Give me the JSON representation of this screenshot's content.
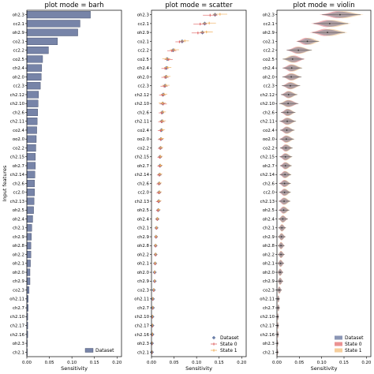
{
  "chart_data": [
    {
      "type": "bar",
      "orientation": "horizontal",
      "title": "plot mode = barh",
      "xlabel": "Sensitivity",
      "ylabel": "Input features",
      "xlim": [
        0,
        0.21
      ],
      "xticks": [
        "0.00",
        "0.05",
        "0.10",
        "0.15",
        "0.20"
      ],
      "categories": [
        "oh2.3",
        "cc2.1",
        "oh2.9",
        "co2.1",
        "cc2.2",
        "co2.5",
        "ch2.4",
        "oh2.0",
        "cc2.3",
        "ch2.12",
        "ch2.10",
        "ch2.6",
        "ch2.11",
        "co2.4",
        "oo2.0",
        "co2.2",
        "ch2.15",
        "oh2.7",
        "ch2.14",
        "ch2.6",
        "cc2.0",
        "ch2.13",
        "oh2.5",
        "oh2.4",
        "ch2.1",
        "ch2.9",
        "oh2.8",
        "oh2.2",
        "oh2.1",
        "oh2.0",
        "ch2.9",
        "co2.3",
        "oh2.11",
        "ch2.7",
        "ch2.10",
        "ch2.17",
        "ch2.16",
        "oh2.3",
        "ch2.1"
      ],
      "series": [
        {
          "name": "Dataset",
          "color": "#7784a8",
          "values": [
            0.141,
            0.118,
            0.113,
            0.068,
            0.048,
            0.035,
            0.033,
            0.032,
            0.03,
            0.026,
            0.025,
            0.024,
            0.023,
            0.022,
            0.021,
            0.02,
            0.019,
            0.019,
            0.018,
            0.017,
            0.017,
            0.016,
            0.015,
            0.013,
            0.011,
            0.01,
            0.009,
            0.009,
            0.008,
            0.007,
            0.007,
            0.005,
            0.003,
            0.003,
            0.002,
            0.002,
            0.002,
            0.001,
            0.001
          ]
        }
      ],
      "legend": "lower-right",
      "grid": false
    },
    {
      "type": "scatter",
      "title": "plot mode = scatter",
      "xlabel": "Sensitivity",
      "xlim": [
        0,
        0.21
      ],
      "xticks": [
        "0.00",
        "0.05",
        "0.10",
        "0.15",
        "0.20"
      ],
      "categories": [
        "oh2.3",
        "cc2.1",
        "oh2.9",
        "co2.1",
        "cc2.2",
        "co2.5",
        "ch2.4",
        "oh2.0",
        "cc2.3",
        "ch2.12",
        "ch2.10",
        "ch2.6",
        "ch2.11",
        "co2.4",
        "oo2.0",
        "co2.2",
        "ch2.15",
        "oh2.7",
        "ch2.14",
        "ch2.6",
        "cc2.0",
        "ch2.13",
        "oh2.5",
        "oh2.4",
        "ch2.1",
        "ch2.9",
        "oh2.8",
        "oh2.2",
        "oh2.1",
        "oh2.0",
        "ch2.9",
        "co2.3",
        "oh2.11",
        "ch2.7",
        "ch2.10",
        "ch2.17",
        "ch2.16",
        "oh2.3",
        "ch2.1"
      ],
      "series": [
        {
          "name": "Dataset",
          "color": "#6a7ea8",
          "marker": "diamond",
          "values": [
            0.141,
            0.118,
            0.113,
            0.068,
            0.048,
            0.035,
            0.033,
            0.032,
            0.03,
            0.026,
            0.025,
            0.024,
            0.023,
            0.022,
            0.021,
            0.02,
            0.019,
            0.019,
            0.018,
            0.017,
            0.017,
            0.016,
            0.015,
            0.013,
            0.011,
            0.01,
            0.009,
            0.009,
            0.008,
            0.007,
            0.007,
            0.005,
            0.003,
            0.003,
            0.002,
            0.002,
            0.002,
            0.001,
            0.001
          ]
        },
        {
          "name": "State 0",
          "color": "#e06666",
          "marker": "line",
          "values": [
            0.13,
            0.108,
            0.103,
            0.062,
            0.045,
            0.038,
            0.03,
            0.03,
            0.028,
            0.024,
            0.026,
            0.022,
            0.022,
            0.02,
            0.02,
            0.019,
            0.018,
            0.018,
            0.017,
            0.016,
            0.016,
            0.015,
            0.014,
            0.013,
            0.011,
            0.01,
            0.009,
            0.009,
            0.008,
            0.007,
            0.007,
            0.005,
            0.003,
            0.003,
            0.002,
            0.002,
            0.002,
            0.001,
            0.001
          ],
          "err": [
            0.016,
            0.015,
            0.014,
            0.009,
            0.01,
            0.009,
            0.008,
            0.008,
            0.008,
            0.007,
            0.008,
            0.006,
            0.007,
            0.006,
            0.006,
            0.005,
            0.005,
            0.005,
            0.005,
            0.005,
            0.005,
            0.005,
            0.004,
            0.004,
            0.003,
            0.003,
            0.003,
            0.003,
            0.003,
            0.002,
            0.002,
            0.002,
            0.001,
            0.001,
            0.001,
            0.001,
            0.001,
            0.001,
            0.001
          ]
        },
        {
          "name": "State 1",
          "color": "#f0b060",
          "marker": "line",
          "values": [
            0.152,
            0.128,
            0.122,
            0.074,
            0.051,
            0.033,
            0.036,
            0.034,
            0.032,
            0.028,
            0.024,
            0.026,
            0.025,
            0.024,
            0.022,
            0.021,
            0.02,
            0.02,
            0.019,
            0.018,
            0.018,
            0.017,
            0.016,
            0.013,
            0.011,
            0.01,
            0.009,
            0.009,
            0.008,
            0.007,
            0.007,
            0.005,
            0.003,
            0.003,
            0.002,
            0.002,
            0.002,
            0.001,
            0.001
          ],
          "err": [
            0.016,
            0.015,
            0.014,
            0.009,
            0.01,
            0.009,
            0.008,
            0.008,
            0.008,
            0.007,
            0.008,
            0.006,
            0.007,
            0.006,
            0.006,
            0.005,
            0.005,
            0.005,
            0.005,
            0.005,
            0.005,
            0.005,
            0.004,
            0.004,
            0.003,
            0.003,
            0.003,
            0.003,
            0.003,
            0.002,
            0.002,
            0.002,
            0.001,
            0.001,
            0.001,
            0.001,
            0.001,
            0.001,
            0.001
          ]
        }
      ],
      "legend": "lower-right",
      "grid": false
    },
    {
      "type": "violin",
      "title": "plot mode = violin",
      "xlabel": "Sensitivity",
      "xlim": [
        0,
        0.21
      ],
      "xticks": [
        "0.00",
        "0.05",
        "0.10",
        "0.15",
        "0.20"
      ],
      "categories": [
        "oh2.3",
        "cc2.1",
        "oh2.9",
        "co2.1",
        "cc2.2",
        "co2.5",
        "ch2.4",
        "oh2.0",
        "cc2.3",
        "ch2.12",
        "ch2.10",
        "ch2.6",
        "ch2.11",
        "co2.4",
        "oo2.0",
        "co2.2",
        "ch2.15",
        "oh2.7",
        "ch2.14",
        "ch2.6",
        "cc2.0",
        "ch2.13",
        "oh2.5",
        "oh2.4",
        "ch2.1",
        "ch2.9",
        "oh2.8",
        "oh2.2",
        "oh2.1",
        "oh2.0",
        "ch2.9",
        "co2.3",
        "oh2.11",
        "ch2.7",
        "ch2.10",
        "ch2.17",
        "ch2.16",
        "oh2.3",
        "ch2.1"
      ],
      "series": [
        {
          "name": "Dataset",
          "color": "#7784a8",
          "centers": [
            0.141,
            0.118,
            0.113,
            0.068,
            0.048,
            0.035,
            0.033,
            0.032,
            0.03,
            0.026,
            0.025,
            0.024,
            0.023,
            0.022,
            0.021,
            0.02,
            0.019,
            0.019,
            0.018,
            0.017,
            0.017,
            0.016,
            0.015,
            0.013,
            0.011,
            0.01,
            0.009,
            0.009,
            0.008,
            0.007,
            0.007,
            0.005,
            0.003,
            0.003,
            0.002,
            0.002,
            0.002,
            0.001,
            0.001
          ],
          "spread": [
            0.04,
            0.036,
            0.034,
            0.022,
            0.026,
            0.022,
            0.02,
            0.02,
            0.019,
            0.017,
            0.02,
            0.015,
            0.017,
            0.015,
            0.015,
            0.013,
            0.013,
            0.012,
            0.012,
            0.012,
            0.012,
            0.012,
            0.011,
            0.01,
            0.008,
            0.008,
            0.007,
            0.007,
            0.007,
            0.006,
            0.006,
            0.005,
            0.003,
            0.003,
            0.002,
            0.002,
            0.002,
            0.002,
            0.002
          ]
        },
        {
          "name": "State 0",
          "color": "#e88080",
          "centers": [
            0.135,
            0.112,
            0.107,
            0.064,
            0.046,
            0.038,
            0.031,
            0.031,
            0.029,
            0.025,
            0.026,
            0.023,
            0.022,
            0.021,
            0.02,
            0.019,
            0.018,
            0.018,
            0.017,
            0.016,
            0.016,
            0.015,
            0.014,
            0.013,
            0.011,
            0.01,
            0.009,
            0.009,
            0.008,
            0.007,
            0.007,
            0.005,
            0.003,
            0.003,
            0.002,
            0.002,
            0.002,
            0.001,
            0.001
          ]
        },
        {
          "name": "State 1",
          "color": "#f5c58a",
          "centers": [
            0.148,
            0.124,
            0.119,
            0.072,
            0.05,
            0.033,
            0.035,
            0.033,
            0.031,
            0.027,
            0.024,
            0.025,
            0.024,
            0.023,
            0.022,
            0.021,
            0.02,
            0.02,
            0.019,
            0.018,
            0.018,
            0.017,
            0.016,
            0.013,
            0.011,
            0.01,
            0.009,
            0.009,
            0.008,
            0.007,
            0.007,
            0.005,
            0.003,
            0.003,
            0.002,
            0.002,
            0.002,
            0.001,
            0.001
          ]
        }
      ],
      "legend": "lower-right",
      "grid": false
    }
  ]
}
